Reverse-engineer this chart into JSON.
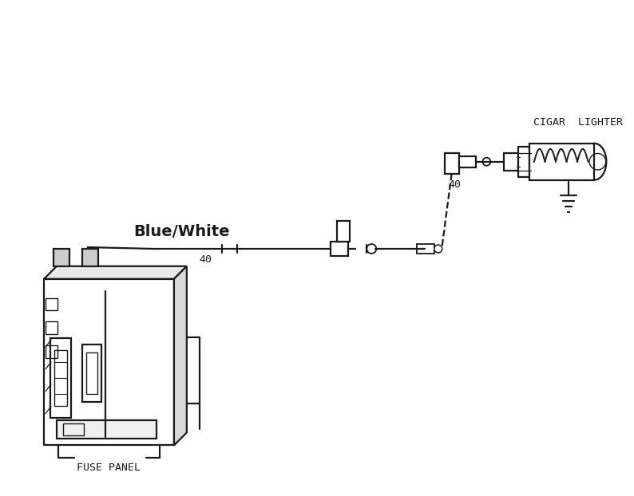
{
  "bg_color": "#ffffff",
  "line_color": "#1a1a1a",
  "fuse_panel_label": "FUSE PANEL",
  "cigar_lighter_label": "CIGAR  LIGHTER",
  "wire_label": "Blue/White",
  "wire_number_bot": "40",
  "wire_number_top": "40",
  "figsize": [
    7.94,
    6.22
  ],
  "dpi": 100
}
